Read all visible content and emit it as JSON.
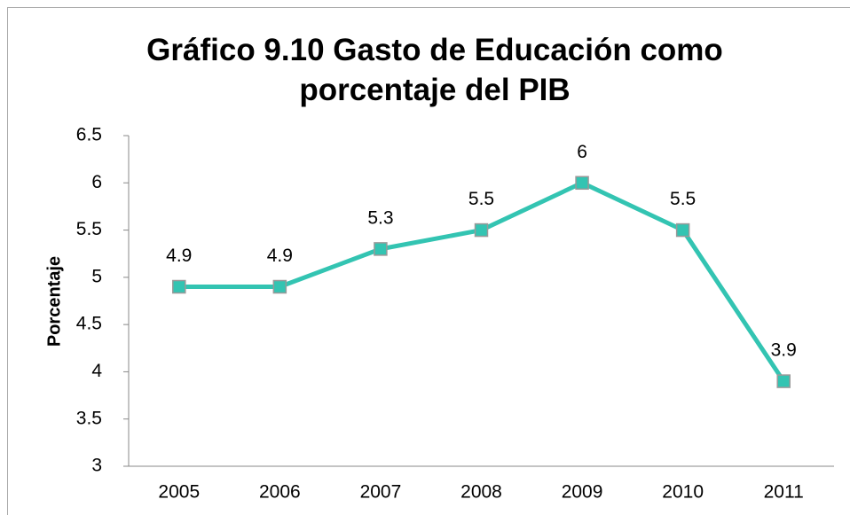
{
  "chart_data": {
    "type": "line",
    "title": "Gráfico 9.10 Gasto de Educación como porcentaje del PIB",
    "y_label": "Porcentaje",
    "categories": [
      "2005",
      "2006",
      "2007",
      "2008",
      "2009",
      "2010",
      "2011"
    ],
    "values": [
      4.9,
      4.9,
      5.3,
      5.5,
      6,
      5.5,
      3.9
    ],
    "color": "#33c4b2",
    "ylim": [
      3,
      6.5
    ],
    "yticks": [
      3,
      3.5,
      4,
      4.5,
      5,
      5.5,
      6,
      6.5
    ],
    "grid": false
  }
}
